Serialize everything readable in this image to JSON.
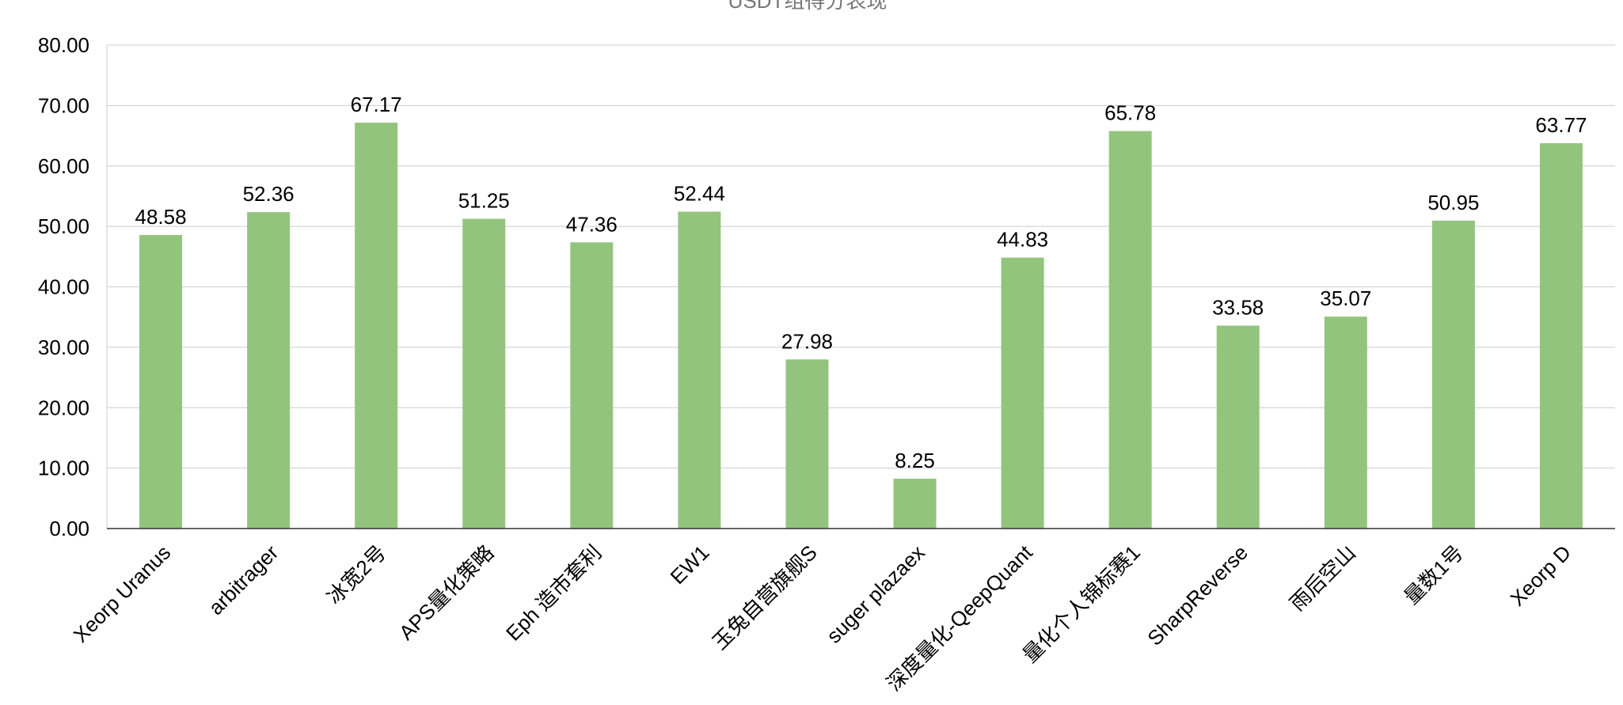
{
  "chart_data": {
    "type": "bar",
    "title": "USDT组得分表现",
    "categories": [
      "Xeorp Uranus",
      "arbitrager",
      "冰宽2号",
      "APS量化策略",
      "Eph 造市套利",
      "EW1",
      "玉兔自营旗舰S",
      "suger plazaex",
      "深度量化-QeepQuant",
      "量化个人锦标赛1",
      "SharpReverse",
      "雨后空山",
      "量数1号",
      "Xeorp D"
    ],
    "values": [
      48.58,
      52.36,
      67.17,
      51.25,
      47.36,
      52.44,
      27.98,
      8.25,
      44.83,
      65.78,
      33.58,
      35.07,
      50.95,
      63.77
    ],
    "value_labels": [
      "48.58",
      "52.36",
      "67.17",
      "51.25",
      "47.36",
      "52.44",
      "27.98",
      "8.25",
      "44.83",
      "65.78",
      "33.58",
      "35.07",
      "50.95",
      "63.77"
    ],
    "ylim": [
      0,
      80
    ],
    "yticks": [
      "0.00",
      "10.00",
      "20.00",
      "30.00",
      "40.00",
      "50.00",
      "60.00",
      "70.00",
      "80.00"
    ],
    "xlabel": "",
    "ylabel": "",
    "grid": true,
    "legend": "none",
    "colors": {
      "bar": "#93c47d",
      "grid": "#cccccc",
      "axis": "#333333"
    }
  }
}
